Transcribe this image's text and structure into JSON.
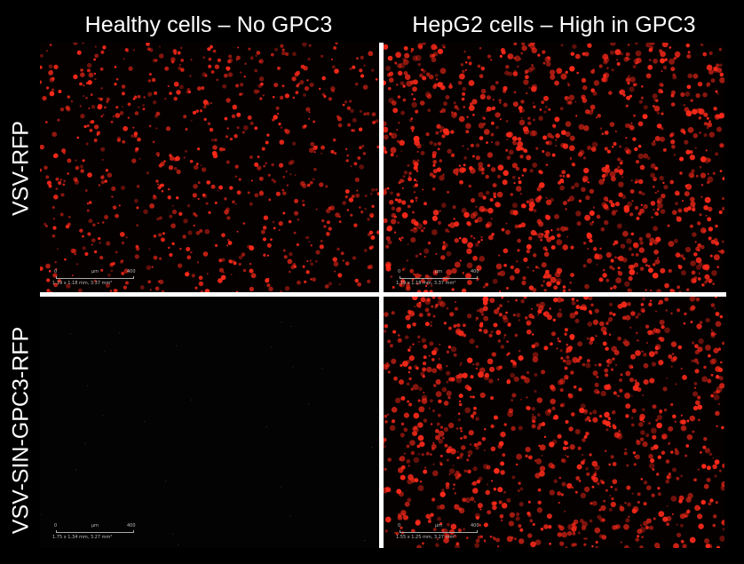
{
  "columns": {
    "left": "Healthy cells – No GPC3",
    "right": "HepG2 cells – High in GPC3"
  },
  "rows": {
    "top": "VSV-RFP",
    "bottom": "VSV-SIN-GPC3-RFP"
  },
  "panels": {
    "top_left": {
      "scale_start": "0",
      "scale_unit": "µm",
      "scale_end": "400",
      "info": "1.19 x 1.18 mm, 3.37 mm²",
      "cell_density": 0.55
    },
    "top_right": {
      "scale_start": "0",
      "scale_unit": "µm",
      "scale_end": "400",
      "info": "1.19 x 1.18 mm, 3.37 mm²",
      "cell_density": 0.85
    },
    "bottom_left": {
      "scale_start": "0",
      "scale_unit": "µm",
      "scale_end": "400",
      "info": "1.75 x 1.34 mm, 3.27 mm²",
      "cell_density": 0.0
    },
    "bottom_right": {
      "scale_start": "0",
      "scale_unit": "µm",
      "scale_end": "400",
      "info": "1.55 x 1.25 mm, 3.27 mm²",
      "cell_density": 0.8
    }
  },
  "colors": {
    "cell": "#ff2a1a",
    "background": "#000000",
    "divider": "#ffffff"
  }
}
